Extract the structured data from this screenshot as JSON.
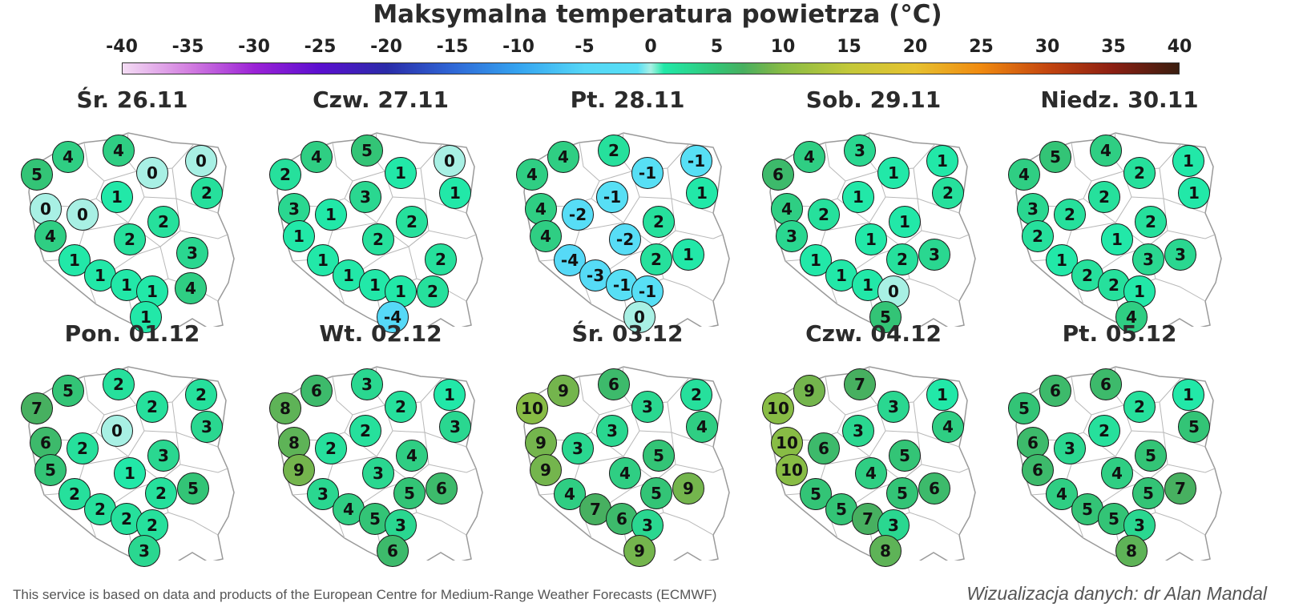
{
  "title": "Maksymalna temperatura powietrza (°C)",
  "scale": {
    "ticks": [
      "-40",
      "-35",
      "-30",
      "-25",
      "-20",
      "-15",
      "-10",
      "-5",
      "0",
      "5",
      "10",
      "15",
      "20",
      "25",
      "30",
      "35",
      "40"
    ],
    "colors": [
      "#f4dcf4",
      "#d37fe0",
      "#9b22d6",
      "#5a0fcf",
      "#2a2ba8",
      "#2f67d6",
      "#35a4f0",
      "#55d7f7",
      "#30e6c0",
      "#2fd58b",
      "#4fb865",
      "#a7c640",
      "#e6c230",
      "#f08a10",
      "#c4460f",
      "#8c1f12",
      "#3a1e10"
    ]
  },
  "stations": [
    "w1",
    "w2",
    "pom",
    "n1",
    "ne",
    "wlk1",
    "nc",
    "e1",
    "wlk2",
    "c1",
    "w3",
    "lod",
    "sw1",
    "sw2",
    "cs",
    "se1",
    "se2",
    "s1",
    "s2"
  ],
  "panels": [
    {
      "title": "Śr. 26.11",
      "values": [
        "5",
        "4",
        "4",
        "0",
        "0",
        "0",
        "1",
        "2",
        "4",
        "0",
        "2",
        "2",
        "1",
        "1",
        "1",
        "3",
        "4",
        "1",
        "1"
      ]
    },
    {
      "title": "Czw. 27.11",
      "values": [
        "2",
        "4",
        "5",
        "1",
        "0",
        "3",
        "3",
        "1",
        "1",
        "1",
        "2",
        "2",
        "1",
        "1",
        "1",
        "2",
        "2",
        "1",
        "-4"
      ]
    },
    {
      "title": "Pt. 28.11",
      "values": [
        "4",
        "4",
        "2",
        "-1",
        "-1",
        "4",
        "-1",
        "1",
        "4",
        "-2",
        "-2",
        "2",
        "-4",
        "-3",
        "-1",
        "2",
        "1",
        "-1",
        "0"
      ]
    },
    {
      "title": "Sob. 29.11",
      "values": [
        "6",
        "4",
        "3",
        "1",
        "1",
        "4",
        "1",
        "2",
        "3",
        "2",
        "1",
        "1",
        "1",
        "1",
        "1",
        "2",
        "3",
        "0",
        "5"
      ]
    },
    {
      "title": "Niedz. 30.11",
      "values": [
        "4",
        "5",
        "4",
        "2",
        "1",
        "3",
        "2",
        "1",
        "2",
        "2",
        "1",
        "2",
        "1",
        "2",
        "2",
        "3",
        "3",
        "1",
        "4"
      ]
    },
    {
      "title": "Pon. 01.12",
      "values": [
        "7",
        "5",
        "2",
        "2",
        "2",
        "6",
        "0",
        "3",
        "5",
        "2",
        "1",
        "3",
        "2",
        "2",
        "2",
        "2",
        "5",
        "2",
        "3"
      ]
    },
    {
      "title": "Wt. 02.12",
      "values": [
        "8",
        "6",
        "3",
        "2",
        "1",
        "8",
        "2",
        "3",
        "9",
        "2",
        "3",
        "4",
        "3",
        "4",
        "5",
        "5",
        "6",
        "3",
        "6"
      ]
    },
    {
      "title": "Śr. 03.12",
      "values": [
        "10",
        "9",
        "6",
        "3",
        "2",
        "9",
        "3",
        "4",
        "9",
        "3",
        "4",
        "5",
        "4",
        "7",
        "6",
        "5",
        "9",
        "3",
        "9"
      ]
    },
    {
      "title": "Czw. 04.12",
      "values": [
        "10",
        "9",
        "7",
        "3",
        "1",
        "10",
        "3",
        "4",
        "10",
        "6",
        "4",
        "5",
        "5",
        "5",
        "7",
        "5",
        "6",
        "3",
        "8"
      ]
    },
    {
      "title": "Pt. 05.12",
      "values": [
        "5",
        "6",
        "6",
        "2",
        "1",
        "6",
        "2",
        "5",
        "6",
        "3",
        "4",
        "5",
        "4",
        "5",
        "5",
        "5",
        "7",
        "3",
        "8"
      ]
    }
  ],
  "footer": {
    "left": "This service is based on data and products of the European Centre for Medium-Range Weather Forecasts (ECMWF)",
    "right": "Wizualizacja danych: dr Alan Mandal"
  }
}
